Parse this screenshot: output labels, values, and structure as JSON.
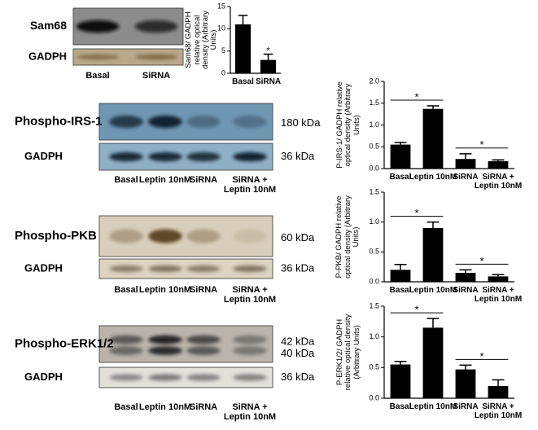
{
  "blots": [
    {
      "target": "Sam68",
      "control": "GADPH",
      "lanes": [
        "Basal",
        "SiRNA"
      ]
    },
    {
      "target": "Phospho-IRS-1",
      "target_kda": [
        "180 kDa"
      ],
      "control": "GADPH",
      "control_kda": "36 kDa",
      "lanes": [
        "Basal",
        "Leptin 10nM",
        "SiRNA",
        "SiRNA + Leptin 10nM"
      ]
    },
    {
      "target": "Phospho-PKB",
      "target_kda": [
        "60 kDa"
      ],
      "control": "GADPH",
      "control_kda": "36 kDa",
      "lanes": [
        "Basal",
        "Leptin 10nM",
        "SiRNA",
        "SiRNA + Leptin 10nM"
      ]
    },
    {
      "target": "Phospho-ERK1/2",
      "target_kda": [
        "42 kDa",
        "40 kDa"
      ],
      "control": "GADPH",
      "control_kda": "36 kDa",
      "lanes": [
        "Basal",
        "Leptin 10nM",
        "SiRNA",
        "SiRNA + Leptin 10nM"
      ]
    }
  ],
  "chart_data": [
    {
      "type": "bar",
      "ylabel": "Sam68/ GADPH relative optical density (Arbitrary Units)",
      "categories": [
        "Basal",
        "SiRNA"
      ],
      "values": [
        11,
        3
      ],
      "errors": [
        2,
        1.3
      ],
      "color": "#000000",
      "ylim": [
        0,
        15
      ],
      "yticks": [
        0,
        5,
        10,
        15
      ],
      "annotations": [
        {
          "text": "*",
          "at": 1
        }
      ]
    },
    {
      "type": "bar",
      "ylabel": "P-IRS-1/ GADPH relative optical density (Arbitrary Units)",
      "categories": [
        "Basal",
        "Leptin 10nM",
        "SiRNA",
        "SiRNA + Leptin 10nM"
      ],
      "values": [
        0.55,
        1.37,
        0.22,
        0.17
      ],
      "errors": [
        0.05,
        0.07,
        0.12,
        0.03
      ],
      "color": "#000000",
      "ylim": [
        0,
        2
      ],
      "yticks": [
        {
          "value": 0,
          "label": "0.0"
        },
        {
          "value": 0.5,
          "label": "0.5"
        },
        {
          "value": 1,
          "label": "1.0"
        },
        {
          "value": 1.5,
          "label": "1.5"
        },
        {
          "value": 2,
          "label": "2.0"
        }
      ],
      "annotations": [
        {
          "text": "*",
          "between": [
            0,
            1
          ]
        },
        {
          "text": "*",
          "between": [
            2,
            3
          ]
        }
      ]
    },
    {
      "type": "bar",
      "ylabel": "P-PKB/ GADPH relative optical density (Arbitrary Units)",
      "categories": [
        "Basal",
        "Leptin 10nM",
        "SiRNA",
        "SiRNA + Leptin 10nM"
      ],
      "values": [
        0.2,
        0.9,
        0.15,
        0.09
      ],
      "errors": [
        0.09,
        0.1,
        0.05,
        0.03
      ],
      "color": "#000000",
      "ylim": [
        0,
        1.5
      ],
      "yticks": [
        {
          "value": 0,
          "label": "0.0"
        },
        {
          "value": 0.5,
          "label": "0.5"
        },
        {
          "value": 1,
          "label": "1.0"
        },
        {
          "value": 1.5,
          "label": "1.5"
        }
      ],
      "annotations": [
        {
          "text": "*",
          "between": [
            0,
            1
          ]
        },
        {
          "text": "*",
          "between": [
            2,
            3
          ]
        }
      ]
    },
    {
      "type": "bar",
      "ylabel": "P-ERK1/2/ GADPH relative optical density (Arbitrary Units)",
      "categories": [
        "Basal",
        "Leptin 10nM",
        "SiRNA",
        "SiRNA + Leptin 10nM"
      ],
      "values": [
        0.55,
        1.15,
        0.47,
        0.2
      ],
      "errors": [
        0.05,
        0.15,
        0.07,
        0.1
      ],
      "color": "#000000",
      "ylim": [
        0,
        1.5
      ],
      "yticks": [
        {
          "value": 0,
          "label": "0.0"
        },
        {
          "value": 0.5,
          "label": "0.5"
        },
        {
          "value": 1,
          "label": "1.0"
        },
        {
          "value": 1.5,
          "label": "1.5"
        }
      ],
      "annotations": [
        {
          "text": "*",
          "between": [
            0,
            1
          ]
        },
        {
          "text": "*",
          "between": [
            2,
            3
          ]
        }
      ]
    }
  ]
}
